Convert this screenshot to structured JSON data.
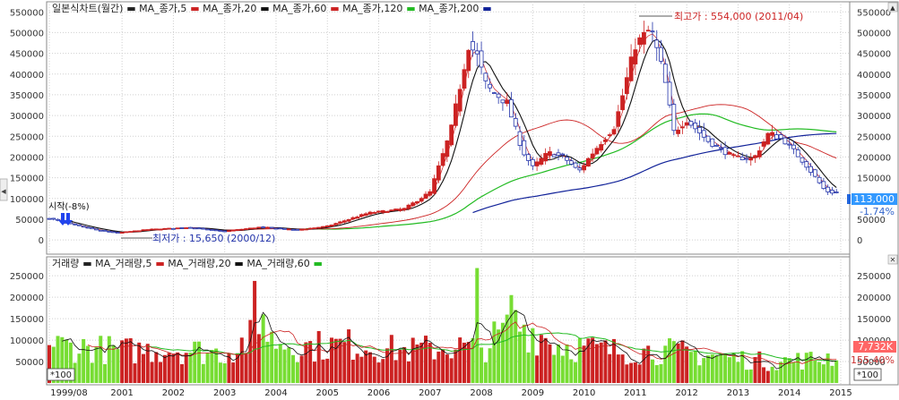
{
  "price_legend": [
    {
      "text": "일본식차트(월간)",
      "color": "#222222"
    },
    {
      "text": "MA_종가,5",
      "color": "#cc2222"
    },
    {
      "text": "MA_종가,20",
      "color": "#111111"
    },
    {
      "text": "MA_종가,60",
      "color": "#cc2222"
    },
    {
      "text": "MA_종가,120",
      "color": "#22bb22"
    },
    {
      "text": "MA_종가,200",
      "color": "#112299"
    }
  ],
  "volume_legend": [
    {
      "text": "거래량",
      "color": "#222222"
    },
    {
      "text": "MA_거래량,5",
      "color": "#cc2222"
    },
    {
      "text": "MA_거래량,20",
      "color": "#111111"
    },
    {
      "text": "MA_거래량,60",
      "color": "#22bb22"
    }
  ],
  "annotations": {
    "high": "최고가 : 554,000 (2011/04)",
    "low": "최저가 : 15,650 (2000/12)",
    "start": "시작(-8%)"
  },
  "price_badge": {
    "value": "113,000",
    "change": "-1.74%"
  },
  "volume_badge": {
    "value": "7,732K",
    "change": "155.40%",
    "unit": "*100"
  },
  "side_arrow": "◀",
  "scroll_arrows": {
    "up": "▲",
    "close": "✕"
  },
  "colors": {
    "up": "#cc2222",
    "down": "#2233aa",
    "vol_up": "#cc2222",
    "vol_down": "#77dd33",
    "ma5": "#cc2222",
    "ma20": "#111111",
    "ma60": "#cc2222",
    "ma120": "#22bb22",
    "ma200": "#112299",
    "badge_price": "#3399ff",
    "badge_vol": "#ff6666"
  },
  "chart_data": {
    "type": "candlestick",
    "x_axis": {
      "tick_labels": [
        "1999/08",
        "2001",
        "2002",
        "2003",
        "2004",
        "2005",
        "2006",
        "2007",
        "2008",
        "2009",
        "2010",
        "2011",
        "2012",
        "2013",
        "2014",
        "2015"
      ],
      "tick_values": [
        1999.583,
        2001,
        2002,
        2003,
        2004,
        2005,
        2006,
        2007,
        2008,
        2009,
        2010,
        2011,
        2012,
        2013,
        2014,
        2015
      ],
      "range": [
        1999.583,
        2015
      ]
    },
    "price_axis": {
      "range": [
        -30000,
        570000
      ],
      "tick_labels": [
        "0",
        "50000",
        "100000",
        "150000",
        "200000",
        "250000",
        "300000",
        "350000",
        "400000",
        "450000",
        "500000",
        "550000"
      ],
      "tick_values": [
        0,
        50000,
        100000,
        150000,
        200000,
        250000,
        300000,
        350000,
        400000,
        450000,
        500000,
        550000
      ]
    },
    "volume_axis": {
      "range": [
        0,
        290000
      ],
      "tick_labels": [
        "50000",
        "100000",
        "150000",
        "200000",
        "250000"
      ],
      "tick_values": [
        50000,
        100000,
        150000,
        200000,
        250000
      ]
    },
    "price_keypoints": [
      {
        "t": 1999.583,
        "v": 52000
      },
      {
        "t": 2000.0,
        "v": 38000
      },
      {
        "t": 2000.5,
        "v": 24000
      },
      {
        "t": 2000.92,
        "v": 17000
      },
      {
        "t": 2001.5,
        "v": 25000
      },
      {
        "t": 2002.3,
        "v": 30000
      },
      {
        "t": 2003.0,
        "v": 21000
      },
      {
        "t": 2003.7,
        "v": 31000
      },
      {
        "t": 2004.4,
        "v": 24000
      },
      {
        "t": 2005.0,
        "v": 33000
      },
      {
        "t": 2005.8,
        "v": 65000
      },
      {
        "t": 2006.5,
        "v": 75000
      },
      {
        "t": 2007.0,
        "v": 115000
      },
      {
        "t": 2007.4,
        "v": 260000
      },
      {
        "t": 2007.75,
        "v": 470000
      },
      {
        "t": 2007.9,
        "v": 450000
      },
      {
        "t": 2008.1,
        "v": 370000
      },
      {
        "t": 2008.5,
        "v": 330000
      },
      {
        "t": 2008.8,
        "v": 215000
      },
      {
        "t": 2009.0,
        "v": 175000
      },
      {
        "t": 2009.3,
        "v": 210000
      },
      {
        "t": 2009.6,
        "v": 200000
      },
      {
        "t": 2009.9,
        "v": 165000
      },
      {
        "t": 2010.2,
        "v": 215000
      },
      {
        "t": 2010.6,
        "v": 275000
      },
      {
        "t": 2011.0,
        "v": 470000
      },
      {
        "t": 2011.3,
        "v": 510000
      },
      {
        "t": 2011.55,
        "v": 400000
      },
      {
        "t": 2011.75,
        "v": 260000
      },
      {
        "t": 2012.0,
        "v": 290000
      },
      {
        "t": 2012.4,
        "v": 240000
      },
      {
        "t": 2012.9,
        "v": 200000
      },
      {
        "t": 2013.3,
        "v": 195000
      },
      {
        "t": 2013.6,
        "v": 258000
      },
      {
        "t": 2013.9,
        "v": 240000
      },
      {
        "t": 2014.3,
        "v": 185000
      },
      {
        "t": 2014.7,
        "v": 118000
      },
      {
        "t": 2014.9,
        "v": 113000
      }
    ],
    "volume_keypoints": [
      {
        "t": 1999.583,
        "v": 90000
      },
      {
        "t": 2001.0,
        "v": 75000
      },
      {
        "t": 2002.0,
        "v": 80000
      },
      {
        "t": 2003.0,
        "v": 70000
      },
      {
        "t": 2003.6,
        "v": 110000
      },
      {
        "t": 2004.5,
        "v": 85000
      },
      {
        "t": 2005.5,
        "v": 90000
      },
      {
        "t": 2006.5,
        "v": 75000
      },
      {
        "t": 2007.5,
        "v": 85000
      },
      {
        "t": 2008.0,
        "v": 80000
      },
      {
        "t": 2008.7,
        "v": 140000
      },
      {
        "t": 2009.5,
        "v": 90000
      },
      {
        "t": 2010.5,
        "v": 75000
      },
      {
        "t": 2011.5,
        "v": 75000
      },
      {
        "t": 2012.5,
        "v": 65000
      },
      {
        "t": 2013.5,
        "v": 50000
      },
      {
        "t": 2014.5,
        "v": 55000
      },
      {
        "t": 2014.9,
        "v": 65000
      }
    ],
    "volume_spikes": [
      {
        "t": 2003.6,
        "v": 238000
      },
      {
        "t": 2003.75,
        "v": 160000
      },
      {
        "t": 2007.9,
        "v": 268000
      },
      {
        "t": 2008.55,
        "v": 205000
      }
    ],
    "ma_levels": {
      "ma5_last": 118000,
      "ma20_last": 122000,
      "ma60_last": 190000,
      "ma120_last": 265000,
      "ma200_last": 232000
    }
  }
}
